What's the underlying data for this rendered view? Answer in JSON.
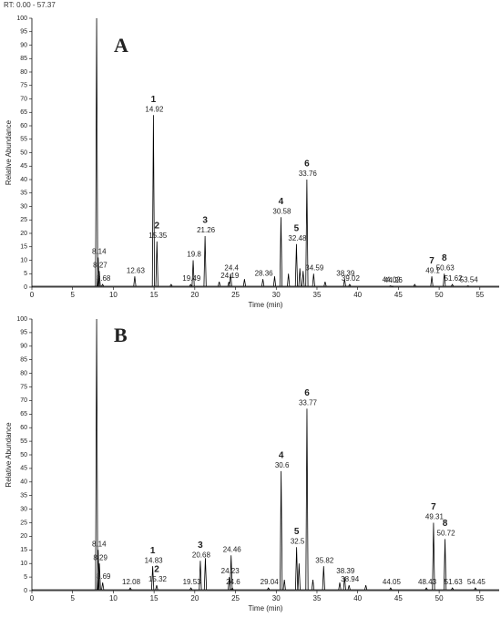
{
  "header": "RT: 0.00 - 57.37",
  "chart_data": [
    {
      "type": "chromatogram",
      "panel": "A",
      "ylabel": "Relative Abundance",
      "xlabel": "Time (min)",
      "xlim": [
        0,
        57.37
      ],
      "ylim": [
        0,
        100
      ],
      "xticks": [
        0,
        5,
        10,
        15,
        20,
        25,
        30,
        35,
        40,
        45,
        50,
        55
      ],
      "yticks": [
        0,
        5,
        10,
        15,
        20,
        25,
        30,
        35,
        40,
        45,
        50,
        55,
        60,
        65,
        70,
        75,
        80,
        85,
        90,
        95,
        100
      ],
      "color": "#000000",
      "x": [
        8.14,
        8.27,
        8.68,
        12.63,
        14.92,
        15.35,
        19.49,
        19.8,
        21.26,
        24.19,
        24.4,
        28.36,
        30.58,
        32.48,
        33.76,
        34.59,
        38.39,
        39.02,
        44.02,
        44.26,
        49.1,
        50.63,
        51.62,
        53.54
      ],
      "values": [
        11,
        6,
        1,
        4,
        64,
        17,
        1,
        10,
        19,
        2,
        5,
        3,
        26,
        16,
        40,
        5,
        3,
        1,
        0.5,
        0.3,
        4,
        5,
        1,
        0.5
      ],
      "peak_numbers": [
        null,
        null,
        null,
        null,
        "1",
        "2",
        null,
        null,
        "3",
        null,
        null,
        null,
        "4",
        "5",
        "6",
        null,
        null,
        null,
        null,
        null,
        "7",
        "8",
        null,
        null
      ],
      "unlabeled_peaks": {
        "x": [
          7.95,
          17.1,
          23.0,
          26.1,
          29.8,
          31.5,
          32.9,
          33.3,
          36.0,
          47.0
        ],
        "values": [
          100,
          1,
          2,
          3,
          4,
          5,
          7,
          6,
          2,
          1
        ]
      }
    },
    {
      "type": "chromatogram",
      "panel": "B",
      "ylabel": "Relative Abundance",
      "xlabel": "Time (min)",
      "xlim": [
        0,
        57.37
      ],
      "ylim": [
        0,
        100
      ],
      "xticks": [
        0,
        5,
        10,
        15,
        20,
        25,
        30,
        35,
        40,
        45,
        50,
        55
      ],
      "yticks": [
        0,
        5,
        10,
        15,
        20,
        25,
        30,
        35,
        40,
        45,
        50,
        55,
        60,
        65,
        70,
        75,
        80,
        85,
        90,
        95,
        100
      ],
      "color": "#000000",
      "x": [
        8.14,
        8.29,
        8.69,
        12.08,
        14.83,
        15.32,
        19.53,
        20.68,
        24.23,
        24.46,
        24.6,
        29.04,
        30.6,
        32.5,
        33.77,
        35.82,
        38.39,
        38.94,
        44.05,
        48.43,
        49.31,
        50.72,
        51.63,
        54.45
      ],
      "values": [
        15,
        10,
        3,
        1,
        9,
        2,
        1,
        11,
        5,
        13,
        1,
        1,
        44,
        16,
        67,
        9,
        5,
        2,
        1,
        1,
        25,
        19,
        1,
        1
      ],
      "peak_numbers": [
        null,
        null,
        null,
        null,
        "1",
        "2",
        null,
        "3",
        null,
        null,
        null,
        null,
        "4",
        "5",
        "6",
        null,
        null,
        null,
        null,
        null,
        "7",
        "8",
        null,
        null
      ],
      "unlabeled_peaks": {
        "x": [
          7.95,
          21.3,
          31.0,
          32.8,
          34.5,
          37.8,
          41.0
        ],
        "values": [
          100,
          12,
          4,
          10,
          4,
          3,
          2
        ]
      }
    }
  ]
}
